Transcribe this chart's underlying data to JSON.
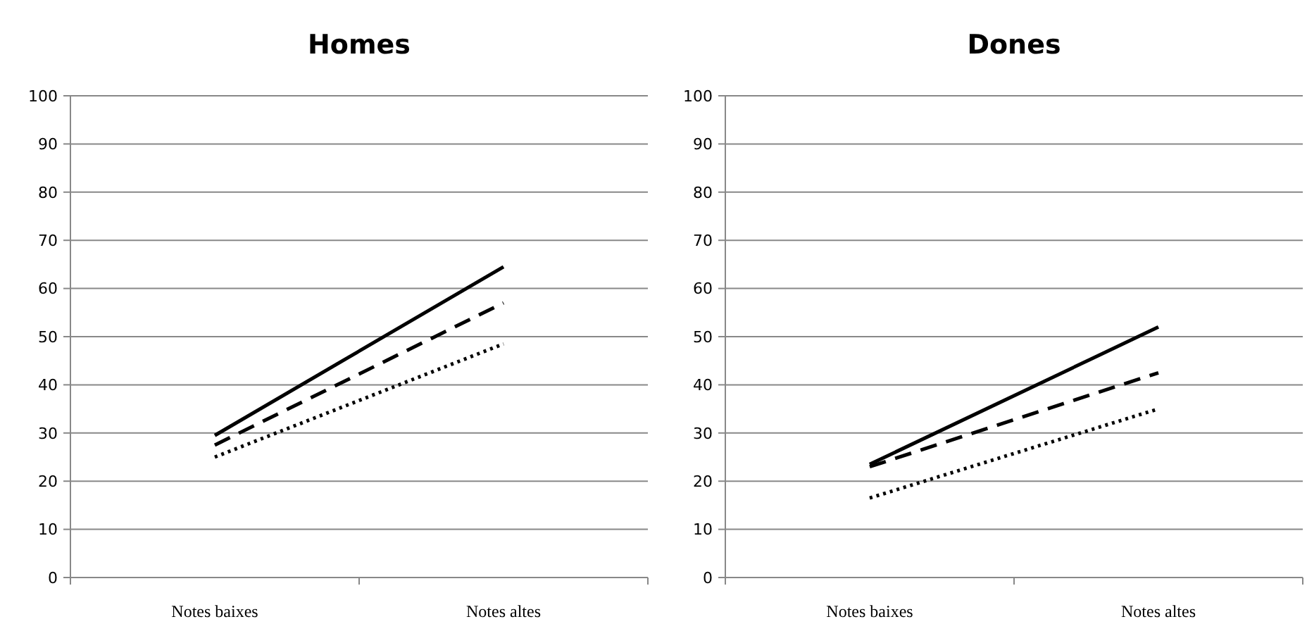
{
  "chart_data": [
    {
      "type": "line",
      "title": "Homes",
      "categories": [
        "Notes baixes",
        "Notes altes"
      ],
      "ylim": [
        0,
        100
      ],
      "yticks": [
        0,
        10,
        20,
        30,
        40,
        50,
        60,
        70,
        80,
        90,
        100
      ],
      "grid": "y",
      "series": [
        {
          "color": "#000000",
          "line_style": "solid",
          "values": [
            29.5,
            64.5
          ]
        },
        {
          "color": "#000000",
          "line_style": "dashed",
          "values": [
            27.5,
            57
          ]
        },
        {
          "color": "#000000",
          "line_style": "dotted",
          "values": [
            25,
            48.5
          ]
        }
      ]
    },
    {
      "type": "line",
      "title": "Dones",
      "categories": [
        "Notes baixes",
        "Notes altes"
      ],
      "ylim": [
        0,
        100
      ],
      "yticks": [
        0,
        10,
        20,
        30,
        40,
        50,
        60,
        70,
        80,
        90,
        100
      ],
      "grid": "y",
      "series": [
        {
          "color": "#000000",
          "line_style": "solid",
          "values": [
            23.5,
            52
          ]
        },
        {
          "color": "#000000",
          "line_style": "dashed",
          "values": [
            23,
            42.5
          ]
        },
        {
          "color": "#000000",
          "line_style": "dotted",
          "values": [
            16.5,
            35
          ]
        }
      ]
    }
  ]
}
